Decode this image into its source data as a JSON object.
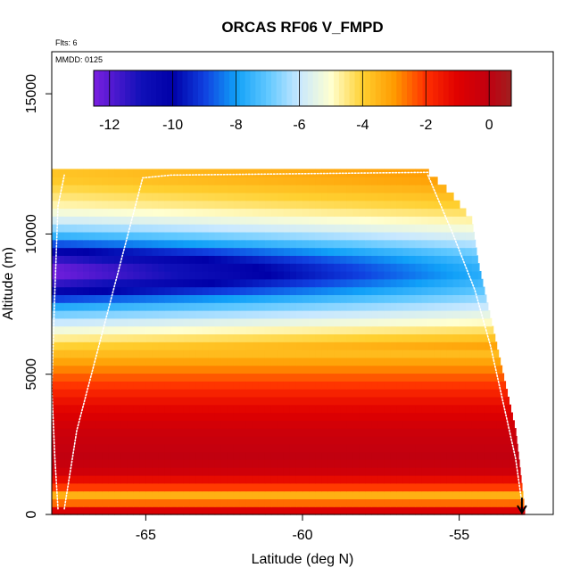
{
  "header": {
    "title": "ORCAS RF06 V_FMPD",
    "flights_note": "Flts: 6",
    "date_note": "MMDD: 0125"
  },
  "chart_data": {
    "type": "heatmap",
    "title": "ORCAS RF06 V_FMPD",
    "xlabel": "Latitude (deg N)",
    "ylabel": "Altitude (m)",
    "xlim": [
      -68.0,
      -52.0
    ],
    "ylim": [
      0,
      16500
    ],
    "xticks": [
      -65,
      -60,
      -55
    ],
    "xtick_labels": [
      "-65",
      "-60",
      "-55"
    ],
    "yticks": [
      0,
      5000,
      10000,
      15000
    ],
    "ytick_labels": [
      "0",
      "5000",
      "10000",
      "15000"
    ],
    "colorbar": {
      "range": [
        -12.5,
        0.7
      ],
      "ticks": [
        -12,
        -10,
        -8,
        -6,
        -4,
        -2,
        0
      ],
      "tick_labels": [
        "-12",
        "-10",
        "-8",
        "-6",
        "-4",
        "-2",
        "0"
      ],
      "stops": [
        {
          "v": -12.5,
          "c": "#7b1fe0"
        },
        {
          "v": -11.0,
          "c": "#1010b8"
        },
        {
          "v": -10.0,
          "c": "#0000a8"
        },
        {
          "v": -9.0,
          "c": "#1040e0"
        },
        {
          "v": -8.0,
          "c": "#10a0f8"
        },
        {
          "v": -7.0,
          "c": "#60c8ff"
        },
        {
          "v": -6.0,
          "c": "#c8e8ff"
        },
        {
          "v": -5.0,
          "c": "#ffffd0"
        },
        {
          "v": -4.0,
          "c": "#ffd030"
        },
        {
          "v": -3.0,
          "c": "#ff9a00"
        },
        {
          "v": -2.0,
          "c": "#ff3000"
        },
        {
          "v": -1.0,
          "c": "#e00000"
        },
        {
          "v": 0.0,
          "c": "#c00010"
        },
        {
          "v": 0.7,
          "c": "#a02020"
        }
      ]
    },
    "altitude_profile": [
      {
        "alt": 0,
        "v": 0.1
      },
      {
        "alt": 400,
        "v": -2.5
      },
      {
        "alt": 700,
        "v": -3.4
      },
      {
        "alt": 1000,
        "v": -2.0
      },
      {
        "alt": 1500,
        "v": -0.5
      },
      {
        "alt": 2000,
        "v": 0.0
      },
      {
        "alt": 3000,
        "v": -0.4
      },
      {
        "alt": 4000,
        "v": -1.3
      },
      {
        "alt": 5000,
        "v": -2.5
      },
      {
        "alt": 6000,
        "v": -4.0
      },
      {
        "alt": 7000,
        "v": -6.0
      },
      {
        "alt": 8000,
        "v": -7.5
      },
      {
        "alt": 8600,
        "v": -8.0
      },
      {
        "alt": 9200,
        "v": -7.5
      },
      {
        "alt": 10000,
        "v": -6.2
      },
      {
        "alt": 11000,
        "v": -4.8
      },
      {
        "alt": 12000,
        "v": -3.8
      }
    ],
    "upper_anomaly": {
      "center_alt": 8700,
      "width_alt": 1100,
      "amplitude_at_southern_edge": -4.5
    },
    "lat_gradient_per_deg": 0.06,
    "data_domain": {
      "south_edge_lat": -68.0,
      "north_edge_at_top_lat": -56.2,
      "top_alt": 12300,
      "north_edge_profile": [
        {
          "alt": 12200,
          "lat": -56.0
        },
        {
          "alt": 11500,
          "lat": -55.3
        },
        {
          "alt": 10500,
          "lat": -54.6
        },
        {
          "alt": 9000,
          "lat": -54.4
        },
        {
          "alt": 7000,
          "lat": -54.0
        },
        {
          "alt": 5000,
          "lat": -53.6
        },
        {
          "alt": 3000,
          "lat": -53.2
        },
        {
          "alt": 0,
          "lat": -52.9
        }
      ]
    },
    "flight_tracks": [
      {
        "name": "track-south-descent",
        "points": [
          [
            -67.8,
            200
          ],
          [
            -67.9,
            2000
          ],
          [
            -68.0,
            4500
          ],
          [
            -67.9,
            8000
          ],
          [
            -67.8,
            11000
          ],
          [
            -67.6,
            12100
          ]
        ]
      },
      {
        "name": "track-diagonal",
        "points": [
          [
            -67.6,
            200
          ],
          [
            -67.2,
            3000
          ],
          [
            -66.5,
            6000
          ],
          [
            -65.8,
            9000
          ],
          [
            -65.1,
            12000
          ],
          [
            -64.2,
            12100
          ],
          [
            -56.0,
            12200
          ]
        ]
      },
      {
        "name": "track-north-descent",
        "points": [
          [
            -56.0,
            12100
          ],
          [
            -55.2,
            10000
          ],
          [
            -54.5,
            8000
          ],
          [
            -54.0,
            6000
          ],
          [
            -53.6,
            4000
          ],
          [
            -53.2,
            2000
          ],
          [
            -53.0,
            400
          ]
        ]
      }
    ],
    "marker": {
      "type": "arrow-down",
      "lat": -53.0,
      "alt_top": 600,
      "alt_bottom": 0,
      "color": "#000000"
    }
  }
}
